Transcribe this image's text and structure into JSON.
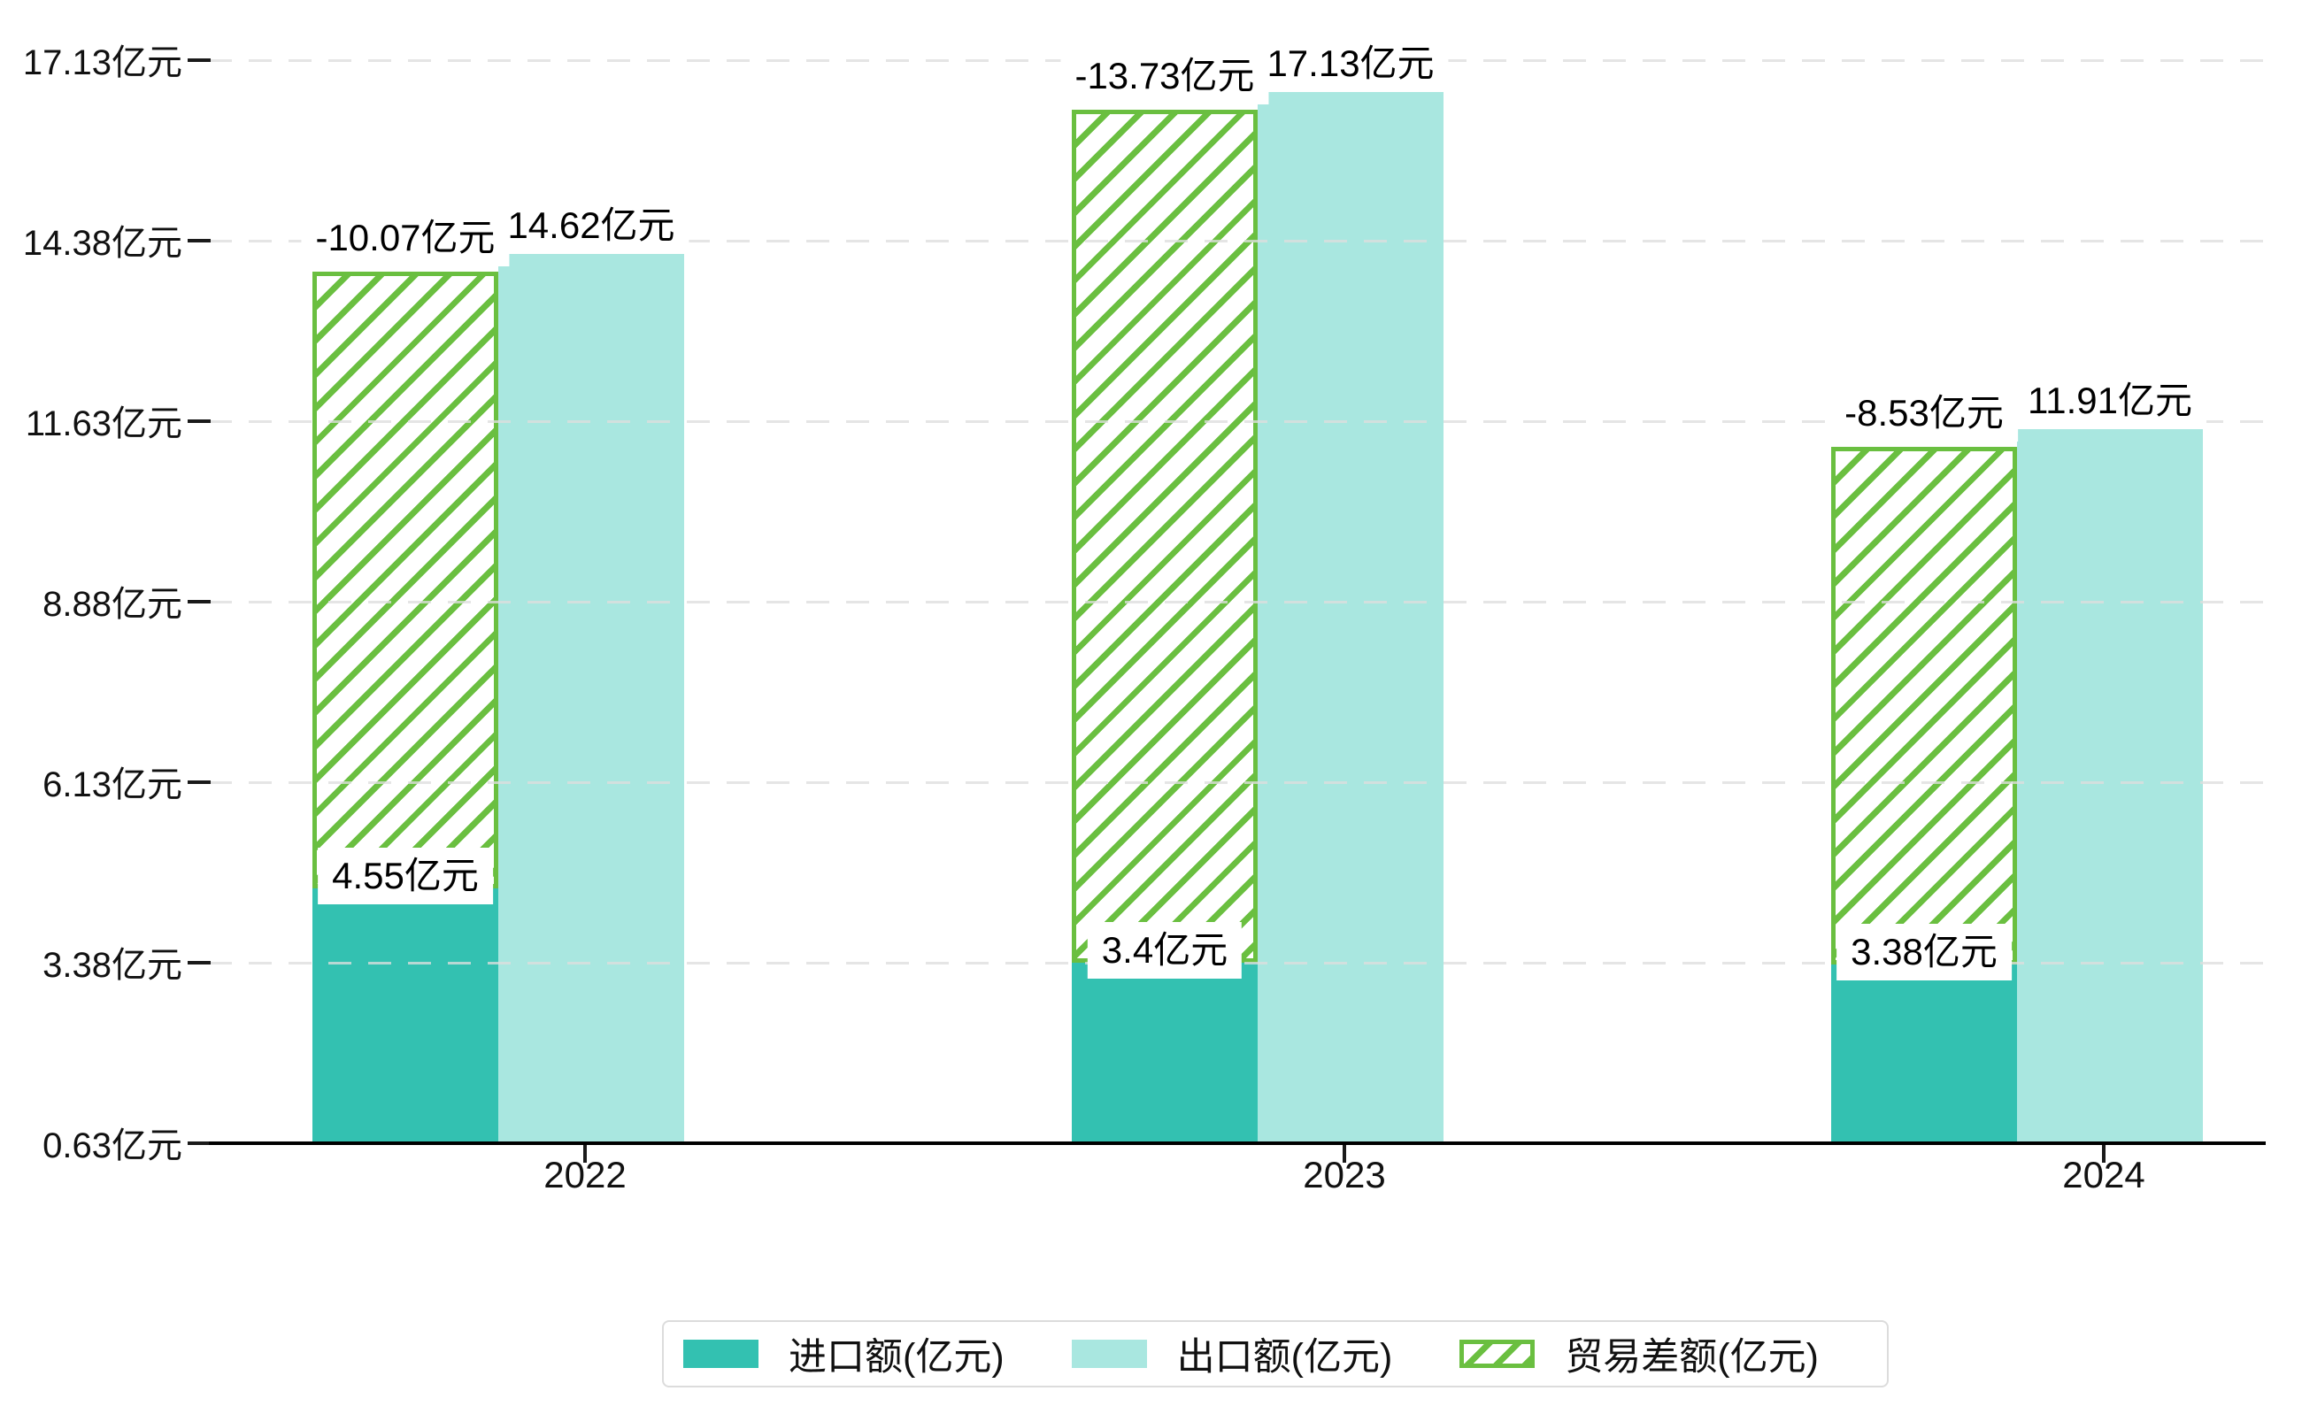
{
  "chart_data": {
    "type": "bar",
    "title": "",
    "categories": [
      "2022",
      "2023",
      "2024"
    ],
    "series": [
      {
        "name": "进口额(亿元)",
        "role": "import",
        "color": "#33c1b1",
        "values": [
          4.55,
          3.4,
          3.38
        ],
        "labels": [
          "4.55亿元",
          "3.4亿元",
          "3.38亿元"
        ]
      },
      {
        "name": "出口额(亿元)",
        "role": "export",
        "color": "#a9e7e0",
        "values": [
          14.62,
          17.13,
          11.91
        ],
        "labels": [
          "14.62亿元",
          "17.13亿元",
          "11.91亿元"
        ]
      },
      {
        "name": "贸易差额(亿元)",
        "role": "trade-balance",
        "color": "#6abf40",
        "pattern": "diagonal-hatch",
        "values": [
          -10.07,
          -13.73,
          -8.53
        ],
        "labels": [
          "-10.07亿元",
          "-13.73亿元",
          "-8.53亿元"
        ],
        "render": "hatched bar stacked from import top up to export level"
      }
    ],
    "y_axis": {
      "tick_values": [
        0.63,
        3.38,
        6.13,
        8.88,
        11.63,
        14.38,
        17.13
      ],
      "tick_labels": [
        "0.63亿元",
        "3.38亿元",
        "6.13亿元",
        "8.88亿元",
        "11.63亿元",
        "14.38亿元",
        "17.13亿元"
      ],
      "min": 0.63,
      "max": 17.13,
      "grid": "dashed-light-gray"
    },
    "x_axis": {
      "tick_labels": [
        "2022",
        "2023",
        "2024"
      ]
    },
    "legend": {
      "position": "bottom-center",
      "items": [
        "进口额(亿元)",
        "出口额(亿元)",
        "贸易差额(亿元)"
      ]
    },
    "colors": {
      "import_bar": "#33c1b1",
      "export_bar": "#a9e7e0",
      "balance_hatch": "#6abf40",
      "gridline": "#e9e9e9",
      "axis": "#000000",
      "text": "#111111",
      "label_background": "#ffffff",
      "legend_border": "#dcdcdc",
      "background": "#ffffff"
    }
  }
}
